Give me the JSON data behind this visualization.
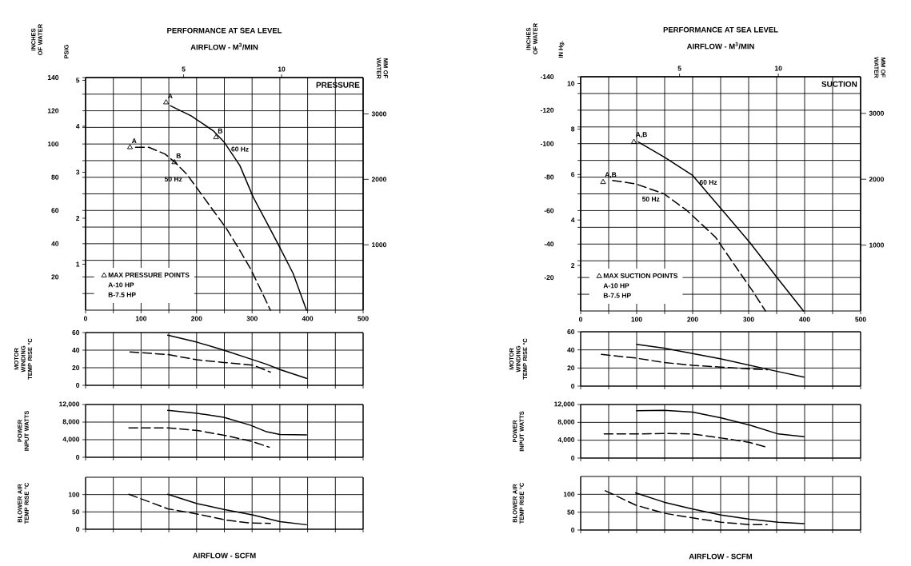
{
  "chart_data": [
    {
      "type": "line",
      "title": "PERFORMANCE AT SEA LEVEL",
      "subtitle": "PRESSURE",
      "ylabel": "INCHES OF WATER",
      "y3label": "PSIG",
      "y2label": "MM OF WATER",
      "x2label": "AIRFLOW - M$^{3}$/MIN",
      "xlim": [
        0,
        500
      ],
      "xticks": [
        0,
        {
          "value": 50,
          "label": null
        },
        100,
        {
          "value": 150,
          "label": null
        },
        200,
        {
          "value": 250,
          "label": null
        },
        300,
        {
          "value": 350,
          "label": null
        },
        400,
        {
          "value": 450,
          "label": null
        },
        500
      ],
      "ylim": [
        0,
        140
      ],
      "yticks": [
        {
          "value": 10,
          "label": null
        },
        20,
        {
          "value": 30,
          "label": null
        },
        40,
        {
          "value": 50,
          "label": null
        },
        60,
        {
          "value": 70,
          "label": null
        },
        80,
        {
          "value": 90,
          "label": null
        },
        100,
        {
          "value": 110,
          "label": null
        },
        120,
        {
          "value": 130,
          "label": null
        },
        140
      ],
      "y2lim": [
        0,
        3556
      ],
      "y2ticks": [
        1000,
        2000,
        3000
      ],
      "y3lim": [
        0,
        5.06
      ],
      "y3ticks": [
        1,
        2,
        3,
        4,
        5
      ],
      "x2lim": [
        0,
        14.16
      ],
      "x2ticks": [
        5,
        10
      ],
      "grid": true,
      "legend": "bottom left",
      "series": [
        {
          "name": "60 Hz",
          "color": "#000000",
          "line_style": "solid",
          "x": [
            153,
            190,
            230,
            250,
            278,
            302,
            326,
            348,
            374,
            398
          ],
          "values": [
            123,
            117,
            108,
            101,
            87,
            68,
            53,
            39,
            22,
            0
          ]
        },
        {
          "name": "50 Hz",
          "color": "#000000",
          "line_style": "dashed",
          "x": [
            90,
            114,
            143,
            161,
            182,
            206,
            230,
            254,
            276,
            297,
            316,
            333
          ],
          "values": [
            98,
            98,
            94,
            89,
            82,
            71,
            60,
            49,
            37,
            25,
            12,
            0
          ]
        },
        {
          "name": "MAX PRESSURE POINTS",
          "type": "scatter",
          "marker": "triangle",
          "color": "#000000",
          "x": [
            145,
            235,
            80,
            160
          ],
          "values": [
            125,
            104,
            98,
            89
          ]
        }
      ],
      "annotations": [
        {
          "text": "A",
          "x": 145,
          "y": 125
        },
        {
          "text": "B",
          "x": 235,
          "y": 104
        },
        {
          "text": "A",
          "x": 80,
          "y": 98
        },
        {
          "text": "B",
          "x": 160,
          "y": 89
        },
        "A-10 HP",
        "B-7.5 HP"
      ]
    },
    {
      "type": "line",
      "ylabel": "MOTOR WINDING TEMP RISE °C",
      "xlim": [
        0,
        500
      ],
      "xticks": [
        0,
        50,
        100,
        150,
        200,
        250,
        300,
        350,
        400,
        450,
        500
      ],
      "ylim": [
        0,
        60
      ],
      "yticks": [
        0,
        20,
        40,
        60
      ],
      "grid": true,
      "tick_labels": "y",
      "series": [
        {
          "color": "#000000",
          "line_style": "solid",
          "x": [
            148,
            201,
            249,
            302,
            326,
            350,
            398
          ],
          "values": [
            57,
            49,
            40,
            29,
            24,
            18,
            8
          ]
        },
        {
          "color": "#000000",
          "line_style": "dashed",
          "x": [
            80,
            148,
            201,
            249,
            302,
            333
          ],
          "values": [
            38,
            35,
            29,
            26,
            23,
            15
          ]
        }
      ]
    },
    {
      "type": "line",
      "ylabel": "POWER INPUT WATTS",
      "xlim": [
        0,
        500
      ],
      "xticks": [
        0,
        50,
        100,
        150,
        200,
        250,
        300,
        350,
        400,
        450,
        500
      ],
      "ylim": [
        0,
        12000
      ],
      "yticks": [
        0,
        {
          "value": 4000,
          "label": "4,000"
        },
        {
          "value": 8000,
          "label": "8,000"
        },
        {
          "value": 12000,
          "label": "12,000"
        }
      ],
      "grid": true,
      "tick_labels": "y",
      "series": [
        {
          "color": "#000000",
          "line_style": "solid",
          "x": [
            148,
            201,
            249,
            297,
            326,
            350,
            398
          ],
          "values": [
            10700,
            10000,
            9100,
            7300,
            5800,
            5200,
            5100
          ]
        },
        {
          "color": "#000000",
          "line_style": "dashed",
          "x": [
            78,
            148,
            201,
            254,
            297,
            331
          ],
          "values": [
            6700,
            6700,
            6100,
            4900,
            3700,
            2300
          ]
        }
      ]
    },
    {
      "type": "line",
      "ylabel": "BLOWER AIR TEMP RISE °C",
      "xlabel": "AIRFLOW - SCFM",
      "xlim": [
        0,
        500
      ],
      "xticks": [
        0,
        50,
        100,
        150,
        200,
        250,
        300,
        350,
        400,
        450,
        500
      ],
      "ylim": [
        0,
        150
      ],
      "yticks": [
        0,
        50,
        100
      ],
      "grid": true,
      "tick_labels": "y",
      "series": [
        {
          "color": "#000000",
          "line_style": "solid",
          "x": [
            148,
            201,
            249,
            302,
            350,
            398
          ],
          "values": [
            101,
            74,
            57,
            41,
            22,
            13
          ]
        },
        {
          "color": "#000000",
          "line_style": "dashed",
          "x": [
            78,
            148,
            201,
            254,
            297,
            333
          ],
          "values": [
            101,
            59,
            44,
            26,
            18,
            17
          ]
        }
      ]
    },
    {
      "type": "line",
      "title": "PERFORMANCE AT SEA LEVEL",
      "subtitle": "SUCTION",
      "ylabel": "INCHES OF WATER",
      "y3label": "IN Hg.",
      "y2label": "MM OF WATER",
      "x2label": "AIRFLOW - M$^{3}$/MIN",
      "xlim": [
        0,
        500
      ],
      "xticks": [
        0,
        {
          "value": 50,
          "label": null
        },
        100,
        {
          "value": 150,
          "label": null
        },
        200,
        {
          "value": 250,
          "label": null
        },
        300,
        {
          "value": 350,
          "label": null
        },
        400,
        {
          "value": 450,
          "label": null
        },
        500
      ],
      "ylim": [
        0,
        -140
      ],
      "yticks": [
        {
          "value": -10,
          "label": null
        },
        -20,
        {
          "value": -30,
          "label": null
        },
        -40,
        {
          "value": -50,
          "label": null
        },
        -60,
        {
          "value": -70,
          "label": null
        },
        -80,
        {
          "value": -90,
          "label": null
        },
        -100,
        {
          "value": -110,
          "label": null
        },
        -120,
        {
          "value": -130,
          "label": null
        },
        -140
      ],
      "y2lim": [
        0,
        3556
      ],
      "y2ticks": [
        1000,
        2000,
        3000
      ],
      "y3lim": [
        0,
        10.3
      ],
      "y3ticks": [
        2,
        4,
        6,
        8,
        10
      ],
      "x2lim": [
        0,
        14.16
      ],
      "x2ticks": [
        5,
        10
      ],
      "grid": true,
      "legend": "bottom left",
      "series": [
        {
          "name": "60 Hz",
          "color": "#000000",
          "line_style": "solid",
          "x": [
            103,
            149,
            200,
            251,
            302,
            353,
            398
          ],
          "values": [
            -101,
            -92,
            -81,
            -61,
            -41,
            -19,
            0
          ]
        },
        {
          "name": "50 Hz",
          "color": "#000000",
          "line_style": "dashed",
          "x": [
            57,
            98,
            149,
            190,
            241,
            282,
            307,
            330
          ],
          "values": [
            -78,
            -76,
            -70,
            -60,
            -44,
            -24,
            -12,
            0
          ]
        },
        {
          "name": "MAX SUCTION POINTS",
          "type": "scatter",
          "marker": "triangle",
          "color": "#000000",
          "x": [
            95,
            40
          ],
          "values": [
            -101,
            -77
          ]
        }
      ],
      "annotations": [
        {
          "text": "A,B",
          "x": 95,
          "y": -101
        },
        {
          "text": "A,B",
          "x": 40,
          "y": -77
        },
        "A-10 HP",
        "B-7.5 HP"
      ]
    },
    {
      "type": "line",
      "ylabel": "MOTOR WINDING TEMP RISE °C",
      "xlim": [
        0,
        500
      ],
      "xticks": [
        0,
        50,
        100,
        150,
        200,
        250,
        300,
        350,
        400,
        450,
        500
      ],
      "ylim": [
        0,
        60
      ],
      "yticks": [
        0,
        20,
        40,
        60
      ],
      "grid": true,
      "tick_labels": "y",
      "series": [
        {
          "color": "#000000",
          "line_style": "solid",
          "x": [
            100,
            149,
            200,
            251,
            302,
            353,
            399
          ],
          "values": [
            46,
            42,
            36,
            30,
            23,
            16,
            10
          ]
        },
        {
          "color": "#000000",
          "line_style": "dashed",
          "x": [
            37,
            98,
            149,
            200,
            251,
            302,
            333
          ],
          "values": [
            35,
            31,
            26,
            23,
            21,
            19,
            18
          ]
        }
      ]
    },
    {
      "type": "line",
      "ylabel": "POWER INPUT WATTS",
      "xlim": [
        0,
        500
      ],
      "xticks": [
        0,
        50,
        100,
        150,
        200,
        250,
        300,
        350,
        400,
        450,
        500
      ],
      "ylim": [
        0,
        12000
      ],
      "yticks": [
        0,
        {
          "value": 4000,
          "label": "4,000"
        },
        {
          "value": 8000,
          "label": "8,000"
        },
        {
          "value": 12000,
          "label": "12,000"
        }
      ],
      "grid": true,
      "tick_labels": "y",
      "series": [
        {
          "color": "#000000",
          "line_style": "solid",
          "x": [
            100,
            149,
            200,
            251,
            302,
            353,
            399
          ],
          "values": [
            10600,
            10700,
            10300,
            9000,
            7400,
            5400,
            4800
          ]
        },
        {
          "color": "#000000",
          "line_style": "dashed",
          "x": [
            42,
            98,
            149,
            200,
            251,
            302,
            333
          ],
          "values": [
            5400,
            5400,
            5500,
            5400,
            4500,
            3500,
            2400
          ]
        }
      ]
    },
    {
      "type": "line",
      "ylabel": "BLOWER AIR TEMP RISE °C",
      "xlabel": "AIRFLOW - SCFM",
      "xlim": [
        0,
        500
      ],
      "xticks": [
        0,
        50,
        100,
        150,
        200,
        250,
        300,
        350,
        400,
        450,
        500
      ],
      "ylim": [
        0,
        150
      ],
      "yticks": [
        0,
        50,
        100
      ],
      "grid": true,
      "tick_labels": "y",
      "series": [
        {
          "color": "#000000",
          "line_style": "solid",
          "x": [
            98,
            149,
            200,
            251,
            302,
            353,
            399
          ],
          "values": [
            104,
            78,
            59,
            42,
            30,
            22,
            18
          ]
        },
        {
          "color": "#000000",
          "line_style": "dashed",
          "x": [
            44,
            98,
            149,
            200,
            251,
            302,
            333
          ],
          "values": [
            110,
            70,
            47,
            34,
            22,
            15,
            15
          ]
        }
      ]
    }
  ]
}
